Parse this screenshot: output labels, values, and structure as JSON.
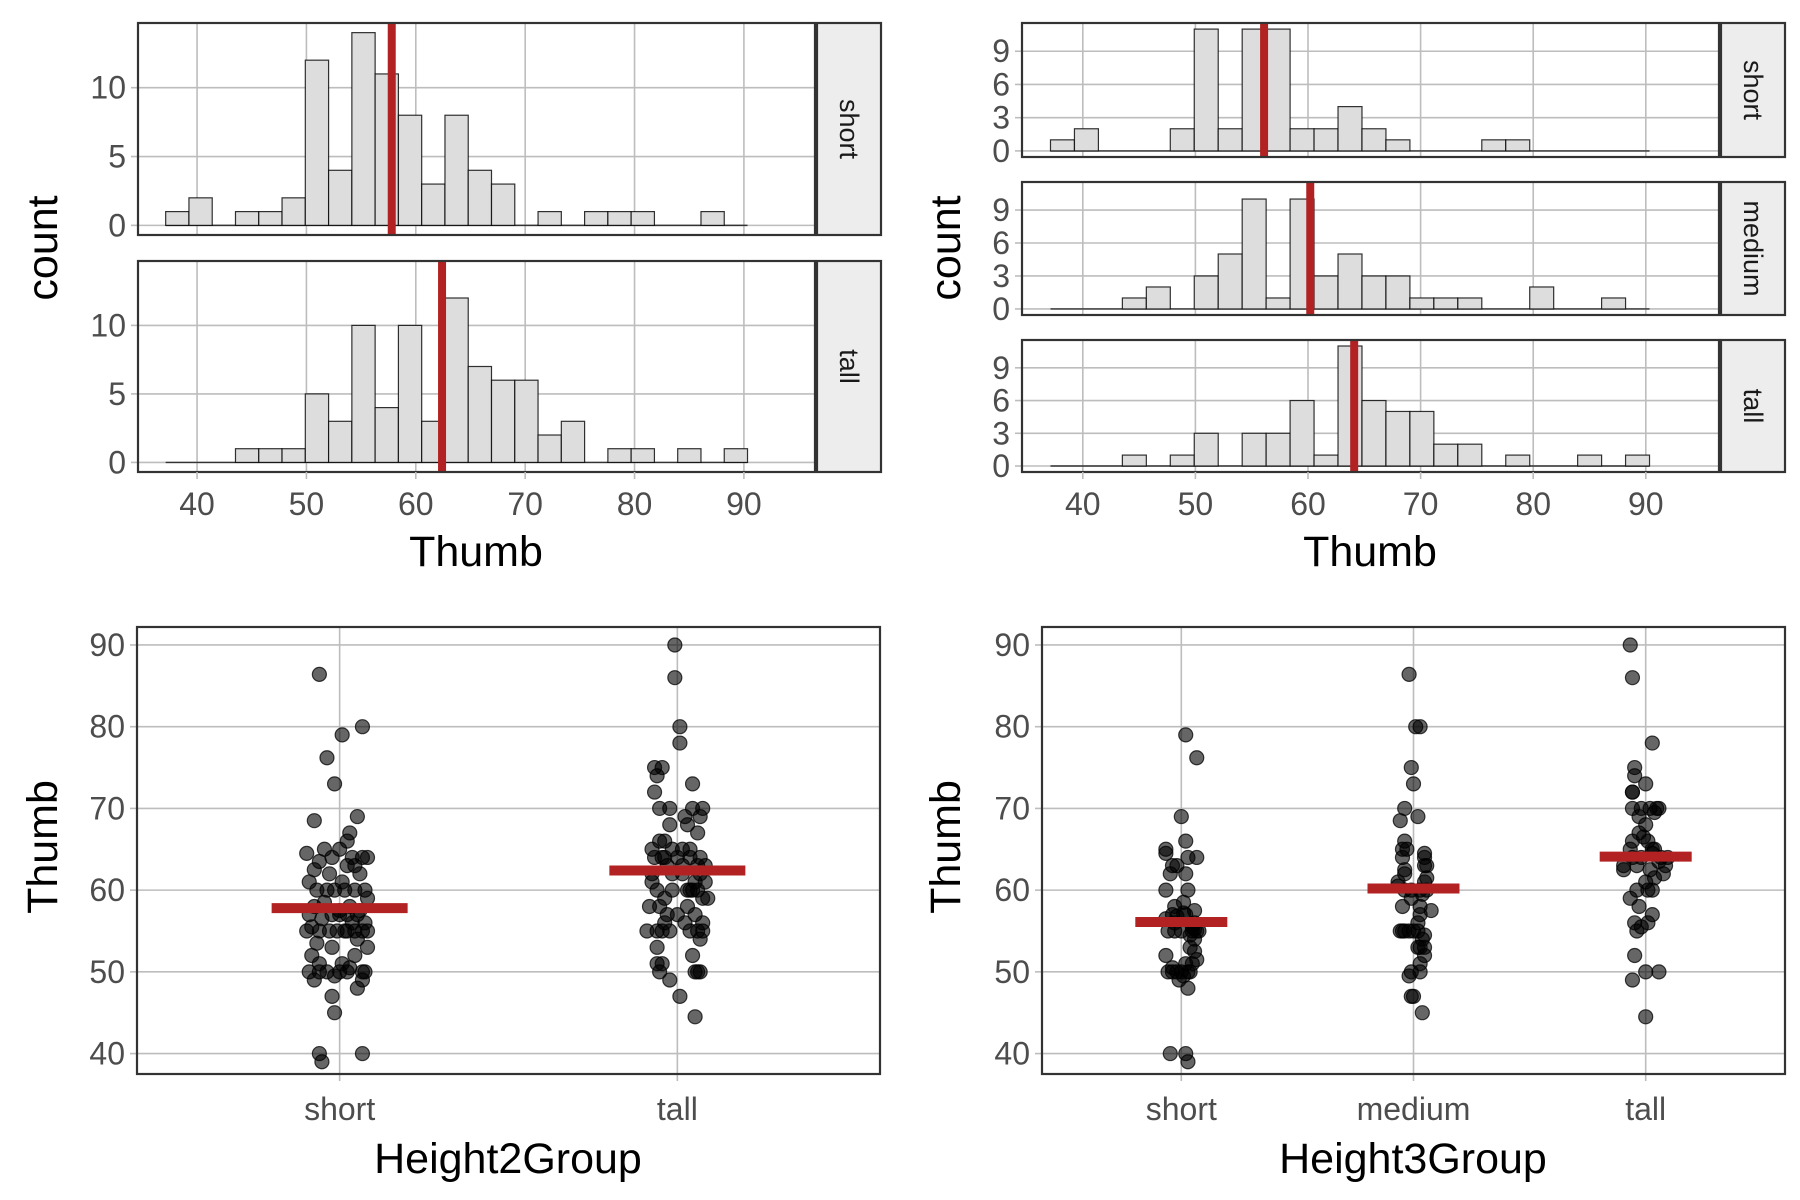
{
  "colors": {
    "bar_fill": "#dddddd",
    "bar_stroke": "#000000",
    "mean_line": "#b22222",
    "point": "#000000",
    "grid": "#bdbdbd",
    "panel_border": "#333333",
    "strip_fill": "#ededed"
  },
  "chart_data": [
    {
      "id": "hist2",
      "type": "bar",
      "subtype": "histogram-faceted",
      "xlabel": "Thumb",
      "ylabel": "count",
      "xlim": [
        34.6,
        96.5
      ],
      "xticks": [
        40,
        50,
        60,
        70,
        80,
        90
      ],
      "xtick_labels": [
        "40",
        "50",
        "60",
        "70",
        "80",
        "90"
      ],
      "bins": {
        "start": 37.13,
        "width": 2.128,
        "n": 25
      },
      "grid": true,
      "facets": [
        {
          "label": "short",
          "ylim": [
            -0.7,
            14.7
          ],
          "yticks": [
            0,
            5,
            10
          ],
          "ytick_labels": [
            "0",
            "5",
            "10"
          ],
          "counts": [
            1,
            2,
            0,
            1,
            1,
            2,
            12,
            4,
            14,
            11,
            8,
            3,
            8,
            4,
            3,
            0,
            1,
            0,
            1,
            1,
            1,
            0,
            0,
            1,
            0
          ],
          "mean": 57.8
        },
        {
          "label": "tall",
          "ylim": [
            -0.7,
            14.7
          ],
          "yticks": [
            0,
            5,
            10
          ],
          "ytick_labels": [
            "0",
            "5",
            "10"
          ],
          "counts": [
            0,
            0,
            0,
            1,
            1,
            1,
            5,
            3,
            10,
            4,
            10,
            3,
            12,
            7,
            6,
            6,
            2,
            3,
            0,
            1,
            1,
            0,
            1,
            0,
            1
          ],
          "mean": 62.4
        }
      ]
    },
    {
      "id": "hist3",
      "type": "bar",
      "subtype": "histogram-faceted",
      "xlabel": "Thumb",
      "ylabel": "count",
      "xlim": [
        34.6,
        96.5
      ],
      "xticks": [
        40,
        50,
        60,
        70,
        80,
        90
      ],
      "xtick_labels": [
        "40",
        "50",
        "60",
        "70",
        "80",
        "90"
      ],
      "bins": {
        "start": 37.13,
        "width": 2.128,
        "n": 25
      },
      "grid": true,
      "facets": [
        {
          "label": "short",
          "ylim": [
            -0.55,
            11.55
          ],
          "yticks": [
            0,
            3,
            6,
            9
          ],
          "ytick_labels": [
            "0",
            "3",
            "6",
            "9"
          ],
          "counts": [
            1,
            2,
            0,
            0,
            0,
            2,
            11,
            2,
            11,
            11,
            2,
            2,
            4,
            2,
            1,
            0,
            0,
            0,
            1,
            1,
            0,
            0,
            0,
            0,
            0
          ],
          "mean": 56.1
        },
        {
          "label": "medium",
          "ylim": [
            -0.55,
            11.55
          ],
          "yticks": [
            0,
            3,
            6,
            9
          ],
          "ytick_labels": [
            "0",
            "3",
            "6",
            "9"
          ],
          "counts": [
            0,
            0,
            0,
            1,
            2,
            0,
            3,
            5,
            10,
            1,
            10,
            3,
            5,
            3,
            3,
            1,
            1,
            1,
            0,
            0,
            2,
            0,
            0,
            1,
            0
          ],
          "mean": 60.2
        },
        {
          "label": "tall",
          "ylim": [
            -0.55,
            11.55
          ],
          "yticks": [
            0,
            3,
            6,
            9
          ],
          "ytick_labels": [
            "0",
            "3",
            "6",
            "9"
          ],
          "counts": [
            0,
            0,
            0,
            1,
            0,
            1,
            3,
            0,
            3,
            3,
            6,
            1,
            11,
            6,
            5,
            5,
            2,
            2,
            0,
            1,
            0,
            0,
            1,
            0,
            1
          ],
          "mean": 64.1
        }
      ]
    },
    {
      "id": "jitter2",
      "type": "scatter",
      "subtype": "jitter-with-mean",
      "xlabel": "Height2Group",
      "ylabel": "Thumb",
      "categories": [
        "short",
        "tall"
      ],
      "ylim": [
        37.5,
        92.2
      ],
      "yticks": [
        40,
        50,
        60,
        70,
        80,
        90
      ],
      "ytick_labels": [
        "40",
        "50",
        "60",
        "70",
        "80",
        "90"
      ],
      "grid": true,
      "means": [
        57.8,
        62.4
      ],
      "series": [
        {
          "name": "short",
          "values": [
            86.4,
            80,
            79,
            76.2,
            73,
            69,
            68.5,
            67,
            66,
            65,
            65,
            64.5,
            64,
            64,
            64,
            64,
            63.5,
            63,
            63,
            62.5,
            62,
            62,
            61,
            61,
            60,
            60,
            60,
            60,
            60,
            60,
            59,
            58.5,
            58,
            58,
            57.5,
            57,
            57,
            57,
            57,
            57,
            56.5,
            56,
            56,
            55.5,
            55,
            55,
            55,
            55,
            55,
            55,
            55,
            55,
            55,
            54,
            53.5,
            53,
            53,
            52,
            52,
            51,
            51,
            50.5,
            50,
            50,
            50,
            50,
            50,
            50,
            50,
            49.5,
            49,
            49,
            48,
            47,
            45,
            40,
            40,
            39,
            57.5
          ],
          "jitter": [
            -0.08,
            0.09,
            0.01,
            -0.05,
            -0.02,
            0.07,
            -0.1,
            0.04,
            0.03,
            -0.06,
            0.0,
            -0.13,
            0.09,
            -0.03,
            0.05,
            0.11,
            -0.08,
            0.03,
            0.06,
            -0.1,
            0.08,
            -0.04,
            0.01,
            -0.12,
            -0.05,
            0.1,
            0.02,
            -0.09,
            0.06,
            -0.02,
            0.11,
            -0.06,
            0.04,
            -0.1,
            0.08,
            -0.12,
            0.0,
            0.07,
            0.03,
            -0.03,
            -0.07,
            0.1,
            0.05,
            -0.11,
            0.11,
            -0.04,
            0.02,
            -0.08,
            0.06,
            -0.01,
            0.09,
            -0.13,
            0.03,
            0.07,
            -0.09,
            -0.03,
            0.11,
            0.06,
            -0.11,
            -0.08,
            0.01,
            0.04,
            -0.12,
            -0.05,
            0.1,
            0.0,
            -0.08,
            0.03,
            0.09,
            -0.02,
            0.09,
            -0.1,
            0.07,
            -0.03,
            -0.02,
            -0.08,
            0.09,
            -0.07,
            0.0
          ],
          "color": "#000000"
        },
        {
          "name": "tall",
          "values": [
            90,
            86,
            80,
            78,
            75,
            75,
            74,
            73,
            72,
            70,
            70,
            70,
            70,
            69,
            69,
            68,
            68,
            67,
            66,
            66,
            65,
            65,
            65,
            64,
            64,
            64,
            64,
            64,
            63,
            63,
            63,
            62,
            62,
            61,
            61,
            60,
            60,
            60,
            60,
            60,
            59,
            59,
            59,
            58,
            58,
            57,
            57,
            56,
            56,
            55,
            55,
            55,
            55,
            55,
            55,
            54,
            53,
            52,
            51,
            51,
            50,
            50,
            50,
            50,
            49,
            47,
            44.5,
            62,
            63,
            64,
            61,
            58,
            57,
            56,
            55,
            60,
            65,
            62
          ],
          "jitter": [
            -0.01,
            -0.01,
            0.01,
            0.01,
            -0.09,
            -0.06,
            -0.08,
            0.06,
            -0.09,
            -0.07,
            0.06,
            0.1,
            -0.03,
            0.09,
            0.03,
            0.04,
            -0.03,
            0.08,
            -0.05,
            -0.07,
            0.02,
            0.05,
            -0.1,
            -0.09,
            -0.06,
            0.0,
            0.05,
            0.09,
            -0.04,
            0.08,
            0.11,
            -0.02,
            0.02,
            -0.1,
            0.07,
            -0.08,
            -0.02,
            0.04,
            0.08,
            0.06,
            -0.05,
            0.1,
            0.12,
            -0.07,
            0.04,
            0.0,
            0.07,
            -0.05,
            0.1,
            -0.08,
            -0.06,
            0.05,
            0.08,
            0.1,
            -0.03,
            0.09,
            -0.08,
            0.06,
            -0.08,
            -0.06,
            0.07,
            0.09,
            -0.07,
            0.08,
            -0.03,
            0.01,
            0.07,
            -0.1,
            0.02,
            -0.05,
            0.11,
            -0.11,
            -0.04,
            0.03,
            -0.12,
            0.05,
            -0.02,
            0.09
          ],
          "color": "#000000"
        }
      ]
    },
    {
      "id": "jitter3",
      "type": "scatter",
      "subtype": "jitter-with-mean",
      "xlabel": "Height3Group",
      "ylabel": "Thumb",
      "categories": [
        "short",
        "medium",
        "tall"
      ],
      "ylim": [
        37.5,
        92.2
      ],
      "yticks": [
        40,
        50,
        60,
        70,
        80,
        90
      ],
      "ytick_labels": [
        "40",
        "50",
        "60",
        "70",
        "80",
        "90"
      ],
      "grid": true,
      "means": [
        56.1,
        60.2,
        64.1
      ],
      "series": [
        {
          "name": "short",
          "values": [
            79,
            76.2,
            69,
            66,
            65,
            64.5,
            64,
            64,
            63,
            63,
            62,
            62,
            60,
            60,
            58.5,
            58,
            57.5,
            57,
            57,
            56.5,
            56,
            56,
            55.5,
            55,
            55,
            55,
            55,
            55,
            55,
            54,
            53,
            52.5,
            52,
            51.5,
            51,
            51,
            50.5,
            50,
            50,
            50,
            50,
            50,
            50,
            49.5,
            49,
            48,
            40,
            40,
            39,
            57.2,
            56.8,
            55.2,
            54.5
          ],
          "jitter": [
            0.02,
            0.07,
            0.0,
            0.02,
            -0.07,
            -0.07,
            0.03,
            0.07,
            -0.04,
            -0.02,
            -0.05,
            0.02,
            -0.07,
            0.03,
            0.01,
            -0.03,
            0.06,
            -0.04,
            0.02,
            -0.07,
            0.06,
            -0.03,
            0.05,
            -0.06,
            -0.03,
            0.0,
            0.05,
            0.07,
            0.08,
            0.06,
            0.04,
            0.06,
            -0.07,
            0.07,
            0.05,
            0.02,
            -0.04,
            -0.04,
            -0.02,
            0.0,
            0.03,
            -0.06,
            0.04,
            0.01,
            -0.01,
            0.03,
            -0.05,
            0.02,
            0.03,
            0.01,
            -0.02,
            0.06,
            0.04
          ],
          "color": "#000000"
        },
        {
          "name": "medium",
          "values": [
            86.4,
            80,
            80,
            75,
            73,
            70,
            69,
            68.5,
            66,
            65,
            65,
            64.5,
            64,
            64,
            63,
            63,
            62,
            61,
            61,
            60.5,
            60,
            60,
            60,
            60,
            59.5,
            59,
            58,
            58,
            57,
            55,
            55,
            55,
            55,
            55,
            55,
            54.5,
            54,
            53,
            53,
            53,
            52,
            51,
            50,
            50,
            49.5,
            47,
            47,
            45,
            61.5,
            62.5,
            57.5,
            56
          ],
          "jitter": [
            -0.02,
            0.01,
            0.03,
            -0.01,
            0.0,
            -0.04,
            0.02,
            -0.06,
            -0.04,
            -0.05,
            -0.03,
            0.05,
            0.05,
            -0.05,
            0.06,
            0.05,
            -0.04,
            0.05,
            -0.07,
            -0.07,
            -0.01,
            0.03,
            0.06,
            -0.04,
            0.04,
            -0.01,
            -0.05,
            0.03,
            0.03,
            -0.06,
            -0.05,
            -0.04,
            -0.02,
            0.0,
            0.02,
            0.05,
            0.04,
            0.05,
            0.02,
            0.03,
            0.05,
            0.03,
            -0.01,
            0.03,
            -0.02,
            0.0,
            -0.01,
            0.04,
            0.06,
            -0.04,
            0.08,
            0.02
          ],
          "color": "#000000"
        },
        {
          "name": "tall",
          "values": [
            90,
            86,
            78,
            75,
            74,
            73,
            72,
            72,
            70,
            70,
            70,
            70,
            70,
            69.5,
            69,
            68,
            67,
            66,
            66,
            65,
            65,
            64.5,
            64,
            64,
            64,
            63.5,
            63,
            63,
            62.5,
            62,
            61,
            60,
            60,
            60,
            59,
            58,
            57,
            56,
            56,
            55.5,
            55,
            52,
            50,
            50,
            49,
            44.5,
            63,
            64,
            65,
            62.5,
            61.5,
            66.5
          ],
          "jitter": [
            -0.07,
            -0.06,
            0.03,
            -0.05,
            -0.05,
            0.0,
            -0.06,
            -0.06,
            -0.06,
            -0.02,
            0.02,
            0.05,
            0.06,
            0.04,
            -0.03,
            0.0,
            -0.03,
            -0.06,
            0.01,
            0.04,
            -0.07,
            0.03,
            -0.06,
            -0.02,
            0.07,
            0.06,
            -0.04,
            -0.1,
            0.02,
            0.08,
            0.0,
            -0.04,
            0.03,
            0.01,
            -0.07,
            -0.03,
            0.03,
            -0.05,
            0.01,
            -0.02,
            -0.04,
            -0.05,
            0.0,
            0.06,
            -0.06,
            0.0,
            0.09,
            0.1,
            0.03,
            -0.1,
            0.04,
            -0.01
          ],
          "color": "#000000"
        }
      ]
    }
  ]
}
